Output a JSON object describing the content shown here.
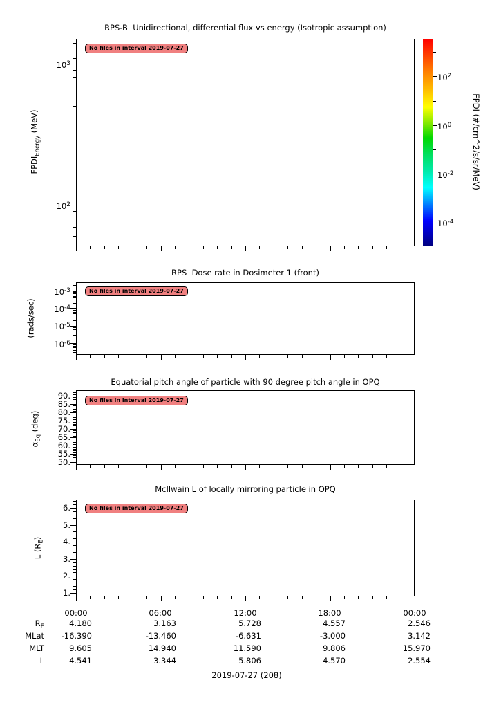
{
  "panels": [
    {
      "title": "RPS-B  Unidirectional, differential flux vs energy (Isotropic assumption)",
      "badge": "No files in interval 2019-07-27",
      "ylabel": {
        "main": "FPDI",
        "sub": "Energy",
        "rest": " (MeV)"
      },
      "yticks": [
        {
          "base": "10",
          "exp": "3"
        },
        {
          "base": "10",
          "exp": "2"
        }
      ]
    },
    {
      "title": "RPS  Dose rate in Dosimeter 1 (front)",
      "badge": "No files in interval 2019-07-27",
      "ylabel": {
        "main": "(rads/sec)",
        "sub": "",
        "rest": ""
      },
      "yticks": [
        {
          "base": "10",
          "exp": "-3"
        },
        {
          "base": "10",
          "exp": "-4"
        },
        {
          "base": "10",
          "exp": "-5"
        },
        {
          "base": "10",
          "exp": "-6"
        }
      ]
    },
    {
      "title": "Equatorial pitch angle of particle with 90 degree pitch angle in OPQ",
      "badge": "No files in interval 2019-07-27",
      "ylabel": {
        "main": "α",
        "sub": "Eq",
        "rest": " (deg)"
      },
      "yticks": [
        "90.",
        "85.",
        "80.",
        "75.",
        "70.",
        "65.",
        "60.",
        "55.",
        "50."
      ]
    },
    {
      "title": "McIlwain L of locally mirroring particle in OPQ",
      "badge": "No files in interval 2019-07-27",
      "ylabel": {
        "main": "L (R",
        "sub": "E",
        "rest": ")"
      },
      "yticks": [
        "6.",
        "5.",
        "4.",
        "3.",
        "2.",
        "1."
      ]
    }
  ],
  "colorbar": {
    "label": "FPDI (#/cm^2/s/sr/MeV)",
    "ticks": [
      {
        "base": "10",
        "exp": "2"
      },
      {
        "base": "10",
        "exp": "0"
      },
      {
        "base": "10",
        "exp": "-2"
      },
      {
        "base": "10",
        "exp": "-4"
      }
    ],
    "gradient_top_to_bottom": [
      "#ff0000",
      "#ff8000",
      "#ffff00",
      "#00d800",
      "#00e8a0",
      "#00ffff",
      "#0000ff",
      "#000080"
    ]
  },
  "xaxis": {
    "labels": [
      "00:00",
      "06:00",
      "12:00",
      "18:00",
      "00:00"
    ]
  },
  "ephemeris": {
    "rows": [
      {
        "label": {
          "main": "R",
          "sub": "E"
        },
        "values": [
          "4.180",
          "3.163",
          "5.728",
          "4.557",
          "2.546"
        ]
      },
      {
        "label": {
          "main": "MLat",
          "sub": ""
        },
        "values": [
          "-16.390",
          "-13.460",
          "-6.631",
          "-3.000",
          "3.142"
        ]
      },
      {
        "label": {
          "main": "MLT",
          "sub": ""
        },
        "values": [
          "9.605",
          "14.940",
          "11.590",
          "9.806",
          "15.970"
        ]
      },
      {
        "label": {
          "main": "L",
          "sub": ""
        },
        "values": [
          "4.541",
          "3.344",
          "5.806",
          "4.570",
          "2.554"
        ]
      }
    ]
  },
  "footer": {
    "date_label": "2019-07-27 (208)"
  },
  "colors": {
    "badge_bg": "#f08080",
    "badge_border": "#000000",
    "axis": "#000000",
    "text": "#000000",
    "background": "#ffffff"
  },
  "chart_data": [
    {
      "type": "heatmap",
      "title": "RPS-B  Unidirectional, differential flux vs energy (Isotropic assumption)",
      "xlabel": "",
      "ylabel": "FPDI_Energy (MeV)",
      "yscale": "log",
      "ylim": [
        50,
        1500
      ],
      "yticks_labeled": [
        1000,
        100
      ],
      "x_ticks": [
        "00:00",
        "06:00",
        "12:00",
        "18:00",
        "00:00"
      ],
      "colorbar_label": "FPDI (#/cm^2/s/sr/MeV)",
      "colorbar_scale": "log",
      "colorbar_ticks_labeled": [
        100,
        1,
        0.01,
        0.0001
      ],
      "series": [],
      "annotation": "No files in interval 2019-07-27"
    },
    {
      "type": "line",
      "title": "RPS  Dose rate in Dosimeter 1 (front)",
      "xlabel": "",
      "ylabel": "(rads/sec)",
      "yscale": "log",
      "yticks_labeled": [
        0.001,
        0.0001,
        1e-05,
        1e-06
      ],
      "x_ticks": [
        "00:00",
        "06:00",
        "12:00",
        "18:00",
        "00:00"
      ],
      "series": [],
      "annotation": "No files in interval 2019-07-27"
    },
    {
      "type": "line",
      "title": "Equatorial pitch angle of particle with 90 degree pitch angle in OPQ",
      "xlabel": "",
      "ylabel": "alpha_Eq (deg)",
      "ylim": [
        48,
        93
      ],
      "yticks_labeled": [
        90,
        85,
        80,
        75,
        70,
        65,
        60,
        55,
        50
      ],
      "x_ticks": [
        "00:00",
        "06:00",
        "12:00",
        "18:00",
        "00:00"
      ],
      "series": [],
      "annotation": "No files in interval 2019-07-27"
    },
    {
      "type": "line",
      "title": "McIlwain L of locally mirroring particle in OPQ",
      "xlabel": "",
      "ylabel": "L (R_E)",
      "ylim": [
        0.8,
        6.5
      ],
      "yticks_labeled": [
        6,
        5,
        4,
        3,
        2,
        1
      ],
      "x_ticks": [
        "00:00",
        "06:00",
        "12:00",
        "18:00",
        "00:00"
      ],
      "series": [],
      "annotation": "No files in interval 2019-07-27"
    },
    {
      "type": "table",
      "title": "Ephemeris values at time ticks",
      "columns": [
        "00:00",
        "06:00",
        "12:00",
        "18:00",
        "00:00"
      ],
      "rows": {
        "R_E": [
          4.18,
          3.163,
          5.728,
          4.557,
          2.546
        ],
        "MLat": [
          -16.39,
          -13.46,
          -6.631,
          -3.0,
          3.142
        ],
        "MLT": [
          9.605,
          14.94,
          11.59,
          9.806,
          15.97
        ],
        "L": [
          4.541,
          3.344,
          5.806,
          4.57,
          2.554
        ]
      },
      "caption": "2019-07-27 (208)"
    }
  ]
}
